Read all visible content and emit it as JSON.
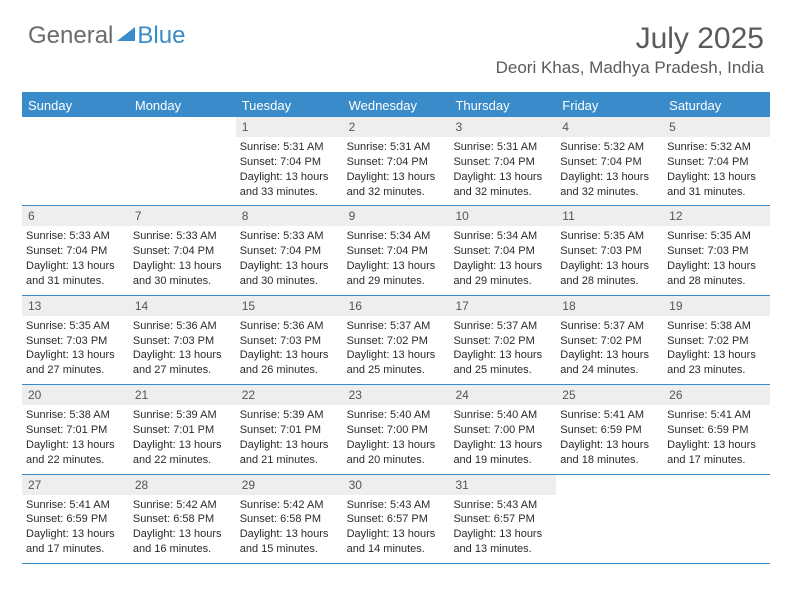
{
  "brand": {
    "part1": "General",
    "part2": "Blue"
  },
  "title": "July 2025",
  "location": "Deori Khas, Madhya Pradesh, India",
  "colors": {
    "accent": "#3a8bc9",
    "text": "#5a5a5a",
    "cell_header_bg": "#eeeeee",
    "background": "#ffffff"
  },
  "days_of_week": [
    "Sunday",
    "Monday",
    "Tuesday",
    "Wednesday",
    "Thursday",
    "Friday",
    "Saturday"
  ],
  "weeks": [
    [
      {
        "n": "",
        "sunrise": "",
        "sunset": "",
        "daylight": ""
      },
      {
        "n": "",
        "sunrise": "",
        "sunset": "",
        "daylight": ""
      },
      {
        "n": "1",
        "sunrise": "Sunrise: 5:31 AM",
        "sunset": "Sunset: 7:04 PM",
        "daylight": "Daylight: 13 hours and 33 minutes."
      },
      {
        "n": "2",
        "sunrise": "Sunrise: 5:31 AM",
        "sunset": "Sunset: 7:04 PM",
        "daylight": "Daylight: 13 hours and 32 minutes."
      },
      {
        "n": "3",
        "sunrise": "Sunrise: 5:31 AM",
        "sunset": "Sunset: 7:04 PM",
        "daylight": "Daylight: 13 hours and 32 minutes."
      },
      {
        "n": "4",
        "sunrise": "Sunrise: 5:32 AM",
        "sunset": "Sunset: 7:04 PM",
        "daylight": "Daylight: 13 hours and 32 minutes."
      },
      {
        "n": "5",
        "sunrise": "Sunrise: 5:32 AM",
        "sunset": "Sunset: 7:04 PM",
        "daylight": "Daylight: 13 hours and 31 minutes."
      }
    ],
    [
      {
        "n": "6",
        "sunrise": "Sunrise: 5:33 AM",
        "sunset": "Sunset: 7:04 PM",
        "daylight": "Daylight: 13 hours and 31 minutes."
      },
      {
        "n": "7",
        "sunrise": "Sunrise: 5:33 AM",
        "sunset": "Sunset: 7:04 PM",
        "daylight": "Daylight: 13 hours and 30 minutes."
      },
      {
        "n": "8",
        "sunrise": "Sunrise: 5:33 AM",
        "sunset": "Sunset: 7:04 PM",
        "daylight": "Daylight: 13 hours and 30 minutes."
      },
      {
        "n": "9",
        "sunrise": "Sunrise: 5:34 AM",
        "sunset": "Sunset: 7:04 PM",
        "daylight": "Daylight: 13 hours and 29 minutes."
      },
      {
        "n": "10",
        "sunrise": "Sunrise: 5:34 AM",
        "sunset": "Sunset: 7:04 PM",
        "daylight": "Daylight: 13 hours and 29 minutes."
      },
      {
        "n": "11",
        "sunrise": "Sunrise: 5:35 AM",
        "sunset": "Sunset: 7:03 PM",
        "daylight": "Daylight: 13 hours and 28 minutes."
      },
      {
        "n": "12",
        "sunrise": "Sunrise: 5:35 AM",
        "sunset": "Sunset: 7:03 PM",
        "daylight": "Daylight: 13 hours and 28 minutes."
      }
    ],
    [
      {
        "n": "13",
        "sunrise": "Sunrise: 5:35 AM",
        "sunset": "Sunset: 7:03 PM",
        "daylight": "Daylight: 13 hours and 27 minutes."
      },
      {
        "n": "14",
        "sunrise": "Sunrise: 5:36 AM",
        "sunset": "Sunset: 7:03 PM",
        "daylight": "Daylight: 13 hours and 27 minutes."
      },
      {
        "n": "15",
        "sunrise": "Sunrise: 5:36 AM",
        "sunset": "Sunset: 7:03 PM",
        "daylight": "Daylight: 13 hours and 26 minutes."
      },
      {
        "n": "16",
        "sunrise": "Sunrise: 5:37 AM",
        "sunset": "Sunset: 7:02 PM",
        "daylight": "Daylight: 13 hours and 25 minutes."
      },
      {
        "n": "17",
        "sunrise": "Sunrise: 5:37 AM",
        "sunset": "Sunset: 7:02 PM",
        "daylight": "Daylight: 13 hours and 25 minutes."
      },
      {
        "n": "18",
        "sunrise": "Sunrise: 5:37 AM",
        "sunset": "Sunset: 7:02 PM",
        "daylight": "Daylight: 13 hours and 24 minutes."
      },
      {
        "n": "19",
        "sunrise": "Sunrise: 5:38 AM",
        "sunset": "Sunset: 7:02 PM",
        "daylight": "Daylight: 13 hours and 23 minutes."
      }
    ],
    [
      {
        "n": "20",
        "sunrise": "Sunrise: 5:38 AM",
        "sunset": "Sunset: 7:01 PM",
        "daylight": "Daylight: 13 hours and 22 minutes."
      },
      {
        "n": "21",
        "sunrise": "Sunrise: 5:39 AM",
        "sunset": "Sunset: 7:01 PM",
        "daylight": "Daylight: 13 hours and 22 minutes."
      },
      {
        "n": "22",
        "sunrise": "Sunrise: 5:39 AM",
        "sunset": "Sunset: 7:01 PM",
        "daylight": "Daylight: 13 hours and 21 minutes."
      },
      {
        "n": "23",
        "sunrise": "Sunrise: 5:40 AM",
        "sunset": "Sunset: 7:00 PM",
        "daylight": "Daylight: 13 hours and 20 minutes."
      },
      {
        "n": "24",
        "sunrise": "Sunrise: 5:40 AM",
        "sunset": "Sunset: 7:00 PM",
        "daylight": "Daylight: 13 hours and 19 minutes."
      },
      {
        "n": "25",
        "sunrise": "Sunrise: 5:41 AM",
        "sunset": "Sunset: 6:59 PM",
        "daylight": "Daylight: 13 hours and 18 minutes."
      },
      {
        "n": "26",
        "sunrise": "Sunrise: 5:41 AM",
        "sunset": "Sunset: 6:59 PM",
        "daylight": "Daylight: 13 hours and 17 minutes."
      }
    ],
    [
      {
        "n": "27",
        "sunrise": "Sunrise: 5:41 AM",
        "sunset": "Sunset: 6:59 PM",
        "daylight": "Daylight: 13 hours and 17 minutes."
      },
      {
        "n": "28",
        "sunrise": "Sunrise: 5:42 AM",
        "sunset": "Sunset: 6:58 PM",
        "daylight": "Daylight: 13 hours and 16 minutes."
      },
      {
        "n": "29",
        "sunrise": "Sunrise: 5:42 AM",
        "sunset": "Sunset: 6:58 PM",
        "daylight": "Daylight: 13 hours and 15 minutes."
      },
      {
        "n": "30",
        "sunrise": "Sunrise: 5:43 AM",
        "sunset": "Sunset: 6:57 PM",
        "daylight": "Daylight: 13 hours and 14 minutes."
      },
      {
        "n": "31",
        "sunrise": "Sunrise: 5:43 AM",
        "sunset": "Sunset: 6:57 PM",
        "daylight": "Daylight: 13 hours and 13 minutes."
      },
      {
        "n": "",
        "sunrise": "",
        "sunset": "",
        "daylight": ""
      },
      {
        "n": "",
        "sunrise": "",
        "sunset": "",
        "daylight": ""
      }
    ]
  ]
}
